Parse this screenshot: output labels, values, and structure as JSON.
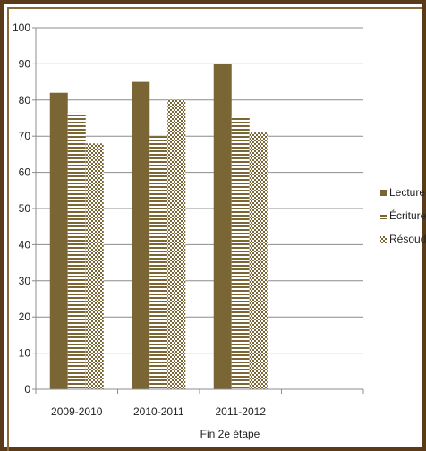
{
  "chart_data": {
    "type": "bar",
    "categories": [
      "2009-2010",
      "2010-2011",
      "2011-2012",
      ""
    ],
    "series": [
      {
        "name": "Lecture",
        "values": [
          82,
          85,
          90,
          null
        ],
        "color": "#7a6535",
        "pattern": "solid"
      },
      {
        "name": "Écriture",
        "values": [
          76.5,
          70,
          75.5,
          null
        ],
        "color": "#7a6535",
        "pattern": "horizontal-stripes"
      },
      {
        "name": "Résoudre",
        "values": [
          68,
          80,
          71,
          null
        ],
        "color": "#7a6535",
        "pattern": "checker"
      }
    ],
    "yticks": [
      0,
      10,
      20,
      30,
      40,
      50,
      60,
      70,
      80,
      90,
      100
    ],
    "ylim": [
      0,
      100
    ],
    "xlabel": "Fin  2e étape",
    "grid": true,
    "legend": "right"
  }
}
